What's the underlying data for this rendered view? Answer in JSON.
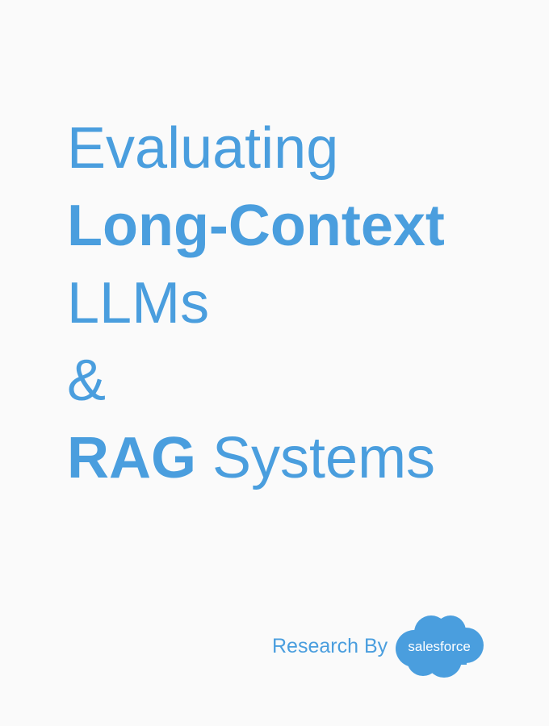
{
  "cover": {
    "title_line1": "Evaluating",
    "title_line2": "Long-Context",
    "title_line3": "LLMs",
    "title_line4": "&",
    "title_line5_bold": "RAG",
    "title_line5_rest": " Systems"
  },
  "footer": {
    "research_by": "Research By",
    "logo_text": "salesforce"
  },
  "colors": {
    "brand_blue": "#4a9ede",
    "background": "#fafafa"
  }
}
